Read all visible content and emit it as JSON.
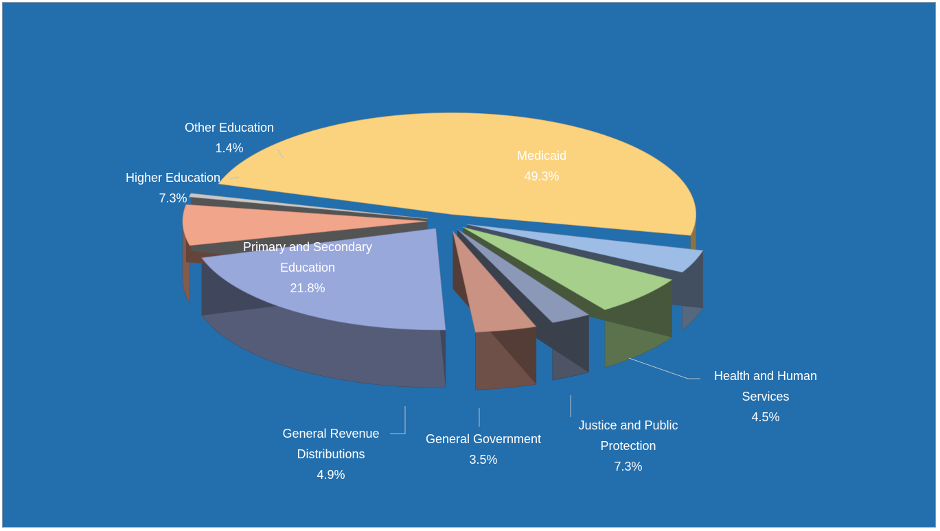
{
  "chart_data": {
    "type": "pie",
    "style": "3d-exploded",
    "legend": "none",
    "slices": [
      {
        "name": "Medicaid",
        "label_lines": [
          "Medicaid"
        ],
        "value": 49.3,
        "pct": "49.3%",
        "color": "#fbd37f"
      },
      {
        "name": "Health and Human Services",
        "label_lines": [
          "Health and Human",
          "Services"
        ],
        "value": 4.5,
        "pct": "4.5%",
        "color": "#9dbde6"
      },
      {
        "name": "Justice and Public Protection",
        "label_lines": [
          "Justice and Public",
          "Protection"
        ],
        "value": 7.3,
        "pct": "7.3%",
        "color": "#a6cf8c"
      },
      {
        "name": "General Government",
        "label_lines": [
          "General Government"
        ],
        "value": 3.5,
        "pct": "3.5%",
        "color": "#8c98b8"
      },
      {
        "name": "General Revenue Distributions",
        "label_lines": [
          "General Revenue",
          "Distributions"
        ],
        "value": 4.9,
        "pct": "4.9%",
        "color": "#c99283"
      },
      {
        "name": "Primary and Secondary Education",
        "label_lines": [
          "Primary and Secondary",
          "Education"
        ],
        "value": 21.8,
        "pct": "21.8%",
        "color": "#99a8db"
      },
      {
        "name": "Higher Education",
        "label_lines": [
          "Higher Education"
        ],
        "value": 7.3,
        "pct": "7.3%",
        "color": "#f1a58b"
      },
      {
        "name": "Other Education",
        "label_lines": [
          "Other Education"
        ],
        "value": 1.4,
        "pct": "1.4%",
        "color": "#c8c8c8"
      }
    ]
  }
}
